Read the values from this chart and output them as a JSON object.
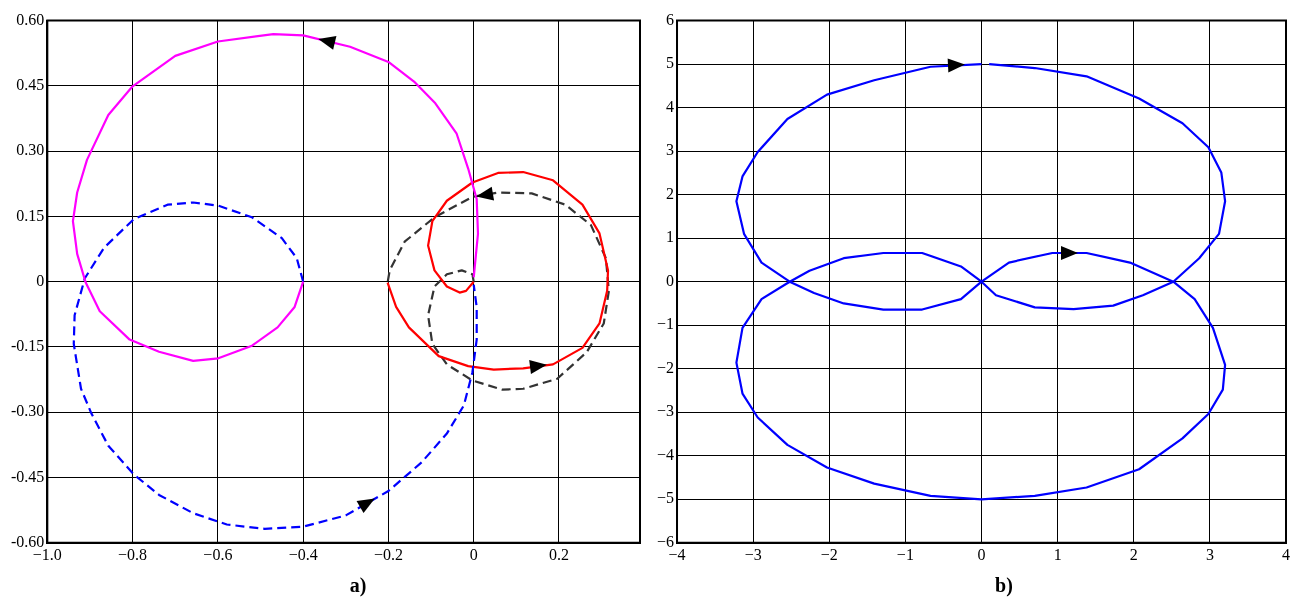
{
  "chart_data": [
    {
      "type": "line",
      "annotations": [
        "a)"
      ],
      "xlim": [
        -1.0,
        0.39
      ],
      "xticks": [
        {
          "value": -1.0,
          "label": "−1.0"
        },
        {
          "value": -0.8,
          "label": "−0.8"
        },
        {
          "value": -0.6,
          "label": "−0.6"
        },
        {
          "value": -0.4,
          "label": "−0.4"
        },
        {
          "value": -0.2,
          "label": "−0.2"
        },
        0,
        {
          "value": 0.2,
          "label": "0.2"
        }
      ],
      "ylim": [
        -0.6,
        0.6
      ],
      "yticks": [
        {
          "value": 0.6,
          "label": "0.60"
        },
        {
          "value": 0.45,
          "label": "0.45"
        },
        {
          "value": 0.3,
          "label": "0.30"
        },
        {
          "value": 0.15,
          "label": "0.15"
        },
        0,
        {
          "value": -0.15,
          "label": "-0.15"
        },
        {
          "value": -0.3,
          "label": "-0.30"
        },
        {
          "value": -0.45,
          "label": "-0.45"
        },
        {
          "value": -0.6,
          "label": "-0.60"
        }
      ],
      "grid": true,
      "legend": false,
      "marker": "none",
      "series": [
        {
          "color": "#ff00ff",
          "line_style": "solid",
          "x": [
            0,
            0.01,
            0.007,
            -0.013,
            -0.04,
            -0.09,
            -0.14,
            -0.2,
            -0.29,
            -0.4,
            -0.47,
            -0.6,
            -0.7,
            -0.8,
            -0.857,
            -0.907,
            -0.93,
            -0.94,
            -0.93,
            -0.91,
            -0.877,
            -0.807,
            -0.738,
            -0.658,
            -0.599,
            -0.52,
            -0.46,
            -0.42,
            -0.4
          ],
          "values": [
            0.01,
            0.11,
            0.19,
            0.26,
            0.34,
            0.41,
            0.46,
            0.505,
            0.54,
            0.566,
            0.569,
            0.552,
            0.519,
            0.449,
            0.383,
            0.28,
            0.205,
            0.139,
            0.064,
            -0.002,
            -0.068,
            -0.133,
            -0.161,
            -0.182,
            -0.176,
            -0.147,
            -0.105,
            -0.058,
            0
          ]
        },
        {
          "color": "#0000ff",
          "line_style": "dashed",
          "x": [
            -0.4,
            -0.415,
            -0.45,
            -0.52,
            -0.6,
            -0.658,
            -0.718,
            -0.797,
            -0.867,
            -0.912,
            -0.936,
            -0.938,
            -0.921,
            -0.897,
            -0.857,
            -0.797,
            -0.738,
            -0.658,
            -0.579,
            -0.49,
            -0.4,
            -0.3,
            -0.2,
            -0.122,
            -0.063,
            -0.023,
            -0.003,
            0.007,
            0.007,
            0
          ],
          "values": [
            0,
            0.054,
            0.1,
            0.148,
            0.175,
            0.182,
            0.177,
            0.144,
            0.078,
            0.008,
            -0.077,
            -0.143,
            -0.246,
            -0.302,
            -0.377,
            -0.443,
            -0.49,
            -0.532,
            -0.558,
            -0.568,
            -0.563,
            -0.537,
            -0.481,
            -0.415,
            -0.349,
            -0.284,
            -0.208,
            -0.133,
            -0.058,
            -0.007
          ]
        },
        {
          "color": "#ff0000",
          "line_style": "solid",
          "x": [
            0,
            -0.018,
            -0.033,
            -0.063,
            -0.092,
            -0.107,
            -0.097,
            -0.063,
            -0.003,
            0.057,
            0.116,
            0.186,
            0.255,
            0.295,
            0.315,
            0.313,
            0.295,
            0.255,
            0.186,
            0.116,
            0.047,
            -0.013,
            -0.082,
            -0.152,
            -0.182,
            -0.202
          ],
          "values": [
            0,
            -0.021,
            -0.025,
            -0.011,
            0.026,
            0.083,
            0.139,
            0.186,
            0.228,
            0.25,
            0.252,
            0.233,
            0.177,
            0.111,
            0.026,
            -0.021,
            -0.096,
            -0.152,
            -0.19,
            -0.199,
            -0.202,
            -0.194,
            -0.171,
            -0.105,
            -0.058,
            -0.002
          ]
        },
        {
          "color": "#333333",
          "line_style": "dashed",
          "x": [
            0,
            -0.003,
            -0.028,
            -0.063,
            -0.092,
            -0.107,
            -0.097,
            -0.063,
            -0.003,
            0.067,
            0.116,
            0.196,
            0.265,
            0.305,
            0.317,
            0.31,
            0.275,
            0.215,
            0.136,
            0.057,
            -0.003,
            -0.092,
            -0.162,
            -0.197,
            -0.202
          ],
          "values": [
            0,
            0.017,
            0.026,
            0.017,
            -0.011,
            -0.077,
            -0.143,
            -0.19,
            -0.227,
            -0.248,
            -0.246,
            -0.223,
            -0.162,
            -0.096,
            -0.021,
            0.054,
            0.13,
            0.177,
            0.203,
            0.205,
            0.195,
            0.148,
            0.092,
            0.026,
            -0.002
          ]
        }
      ]
    },
    {
      "type": "line",
      "annotations": [
        "b)"
      ],
      "xlim": [
        -4,
        4
      ],
      "xticks": [
        {
          "value": -4,
          "label": "−4"
        },
        {
          "value": -3,
          "label": "−3"
        },
        {
          "value": -2,
          "label": "−2"
        },
        {
          "value": -1,
          "label": "−1"
        },
        0,
        1,
        2,
        3,
        4
      ],
      "ylim": [
        -6,
        6
      ],
      "yticks": [
        6,
        5,
        4,
        3,
        2,
        1,
        0,
        {
          "value": -1,
          "label": "−1"
        },
        {
          "value": -2,
          "label": "−2"
        },
        {
          "value": -3,
          "label": "−3"
        },
        {
          "value": -4,
          "label": "−4"
        },
        {
          "value": -5,
          "label": "−5"
        },
        {
          "value": -6,
          "label": "−6"
        }
      ],
      "grid": true,
      "legend": false,
      "marker": "none",
      "series": [
        {
          "color": "#0000ff",
          "line_style": "solid",
          "x": [
            0,
            -0.67,
            -1.41,
            -2.03,
            -2.55,
            -2.94,
            -3.14,
            -3.22,
            -3.12,
            -2.89,
            -2.52,
            -2.2,
            -1.81,
            -1.29,
            -0.78,
            -0.27,
            0,
            0.36,
            0.93,
            1.38,
            1.95,
            2.52,
            2.8,
            3.04,
            3.2,
            3.17,
            2.98,
            2.64,
            2.07,
            1.38,
            0.7,
            0,
            -0.67,
            -1.41,
            -2.03,
            -2.55,
            -2.94,
            -3.14,
            -3.22,
            -3.14,
            -2.89,
            -2.52,
            -2.26,
            -1.81,
            -1.29,
            -0.78,
            -0.27,
            0,
            0.19,
            0.7,
            1.21,
            1.73,
            2.12,
            2.52,
            2.86,
            3.12,
            3.2,
            3.15,
            2.98,
            2.64,
            2.07,
            1.38,
            0.7,
            0.1
          ],
          "values": [
            5.0,
            4.94,
            4.63,
            4.3,
            3.74,
            2.98,
            2.42,
            1.85,
            1.1,
            0.44,
            0,
            -0.26,
            -0.5,
            -0.64,
            -0.64,
            -0.4,
            0,
            0.44,
            0.66,
            0.66,
            0.44,
            0,
            -0.4,
            -1.06,
            -1.91,
            -2.48,
            -3.04,
            -3.6,
            -4.31,
            -4.73,
            -4.92,
            -5.0,
            -4.92,
            -4.64,
            -4.27,
            -3.75,
            -3.12,
            -2.57,
            -1.86,
            -1.06,
            -0.4,
            0,
            0.25,
            0.54,
            0.66,
            0.66,
            0.35,
            0,
            -0.31,
            -0.59,
            -0.63,
            -0.55,
            -0.31,
            0,
            0.54,
            1.1,
            1.85,
            2.51,
            3.09,
            3.64,
            4.21,
            4.72,
            4.91,
            5.0
          ]
        }
      ]
    }
  ]
}
